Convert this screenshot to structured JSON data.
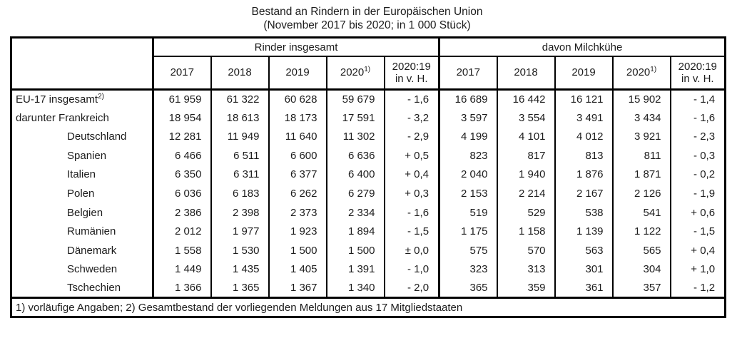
{
  "title": "Bestand an Rindern in der Europäischen Union",
  "subtitle": "(November 2017 bis 2020; in 1 000 Stück)",
  "table": {
    "group_headers": [
      "Rinder insgesamt",
      "davon Milchkühe"
    ],
    "year_headers": [
      "2017",
      "2018",
      "2019",
      "2020"
    ],
    "year_sup": "1)",
    "ratio_header_line1": "2020:19",
    "ratio_header_line2": "in v. H.",
    "rows": [
      {
        "label": "EU-17 insgesamt",
        "label_sup": "2)",
        "indent": false,
        "rinder": [
          "61 959",
          "61 322",
          "60 628",
          "59 679",
          "- 1,6"
        ],
        "milch": [
          "16 689",
          "16 442",
          "16 121",
          "15 902",
          "- 1,4"
        ]
      },
      {
        "label": "darunter Frankreich",
        "indent": false,
        "rinder": [
          "18 954",
          "18 613",
          "18 173",
          "17 591",
          "- 3,2"
        ],
        "milch": [
          "3 597",
          "3 554",
          "3 491",
          "3 434",
          "- 1,6"
        ]
      },
      {
        "label": "Deutschland",
        "indent": true,
        "rinder": [
          "12 281",
          "11 949",
          "11 640",
          "11 302",
          "- 2,9"
        ],
        "milch": [
          "4 199",
          "4 101",
          "4 012",
          "3 921",
          "- 2,3"
        ]
      },
      {
        "label": "Spanien",
        "indent": true,
        "rinder": [
          "6 466",
          "6 511",
          "6 600",
          "6 636",
          "+ 0,5"
        ],
        "milch": [
          "823",
          "817",
          "813",
          "811",
          "- 0,3"
        ]
      },
      {
        "label": "Italien",
        "indent": true,
        "rinder": [
          "6 350",
          "6 311",
          "6 377",
          "6 400",
          "+ 0,4"
        ],
        "milch": [
          "2 040",
          "1 940",
          "1 876",
          "1 871",
          "- 0,2"
        ]
      },
      {
        "label": "Polen",
        "indent": true,
        "rinder": [
          "6 036",
          "6 183",
          "6 262",
          "6 279",
          "+ 0,3"
        ],
        "milch": [
          "2 153",
          "2 214",
          "2 167",
          "2 126",
          "- 1,9"
        ]
      },
      {
        "label": "Belgien",
        "indent": true,
        "rinder": [
          "2 386",
          "2 398",
          "2 373",
          "2 334",
          "- 1,6"
        ],
        "milch": [
          "519",
          "529",
          "538",
          "541",
          "+ 0,6"
        ]
      },
      {
        "label": "Rumänien",
        "indent": true,
        "rinder": [
          "2 012",
          "1 977",
          "1 923",
          "1 894",
          "- 1,5"
        ],
        "milch": [
          "1 175",
          "1 158",
          "1 139",
          "1 122",
          "- 1,5"
        ]
      },
      {
        "label": "Dänemark",
        "indent": true,
        "rinder": [
          "1 558",
          "1 530",
          "1 500",
          "1 500",
          "± 0,0"
        ],
        "milch": [
          "575",
          "570",
          "563",
          "565",
          "+ 0,4"
        ]
      },
      {
        "label": "Schweden",
        "indent": true,
        "rinder": [
          "1 449",
          "1 435",
          "1 405",
          "1 391",
          "- 1,0"
        ],
        "milch": [
          "323",
          "313",
          "301",
          "304",
          "+ 1,0"
        ]
      },
      {
        "label": "Tschechien",
        "indent": true,
        "rinder": [
          "1 366",
          "1 365",
          "1 367",
          "1 340",
          "- 2,0"
        ],
        "milch": [
          "365",
          "359",
          "361",
          "357",
          "- 1,2"
        ]
      }
    ],
    "footnote": "1) vorläufige Angaben; 2) Gesamtbestand der vorliegenden Meldungen aus 17 Mitgliedstaaten"
  },
  "chart_data": {
    "type": "table",
    "title": "Bestand an Rindern in der Europäischen Union",
    "subtitle": "(November 2017 bis 2020; in 1 000 Stück)",
    "row_labels": [
      "EU-17 insgesamt",
      "darunter Frankreich",
      "Deutschland",
      "Spanien",
      "Italien",
      "Polen",
      "Belgien",
      "Rumänien",
      "Dänemark",
      "Schweden",
      "Tschechien"
    ],
    "series": [
      {
        "name": "Rinder insgesamt 2017",
        "values": [
          61959,
          18954,
          12281,
          6466,
          6350,
          6036,
          2386,
          2012,
          1558,
          1449,
          1366
        ]
      },
      {
        "name": "Rinder insgesamt 2018",
        "values": [
          61322,
          18613,
          11949,
          6511,
          6311,
          6183,
          2398,
          1977,
          1530,
          1435,
          1365
        ]
      },
      {
        "name": "Rinder insgesamt 2019",
        "values": [
          60628,
          18173,
          11640,
          6600,
          6377,
          6262,
          2373,
          1923,
          1500,
          1405,
          1367
        ]
      },
      {
        "name": "Rinder insgesamt 2020",
        "values": [
          59679,
          17591,
          11302,
          6636,
          6400,
          6279,
          2334,
          1894,
          1500,
          1391,
          1340
        ]
      },
      {
        "name": "Rinder insgesamt 2020:19 in v. H.",
        "values": [
          -1.6,
          -3.2,
          -2.9,
          0.5,
          0.4,
          0.3,
          -1.6,
          -1.5,
          0.0,
          -1.0,
          -2.0
        ]
      },
      {
        "name": "davon Milchkühe 2017",
        "values": [
          16689,
          3597,
          4199,
          823,
          2040,
          2153,
          519,
          1175,
          575,
          323,
          365
        ]
      },
      {
        "name": "davon Milchkühe 2018",
        "values": [
          16442,
          3554,
          4101,
          817,
          1940,
          2214,
          529,
          1158,
          570,
          313,
          359
        ]
      },
      {
        "name": "davon Milchkühe 2019",
        "values": [
          16121,
          3491,
          4012,
          813,
          1876,
          2167,
          538,
          1139,
          563,
          301,
          361
        ]
      },
      {
        "name": "davon Milchkühe 2020",
        "values": [
          15902,
          3434,
          3921,
          811,
          1871,
          2126,
          541,
          1122,
          565,
          304,
          357
        ]
      },
      {
        "name": "davon Milchkühe 2020:19 in v. H.",
        "values": [
          -1.4,
          -1.6,
          -2.3,
          -0.3,
          -0.2,
          -1.9,
          0.6,
          -1.5,
          0.4,
          1.0,
          -1.2
        ]
      }
    ]
  }
}
